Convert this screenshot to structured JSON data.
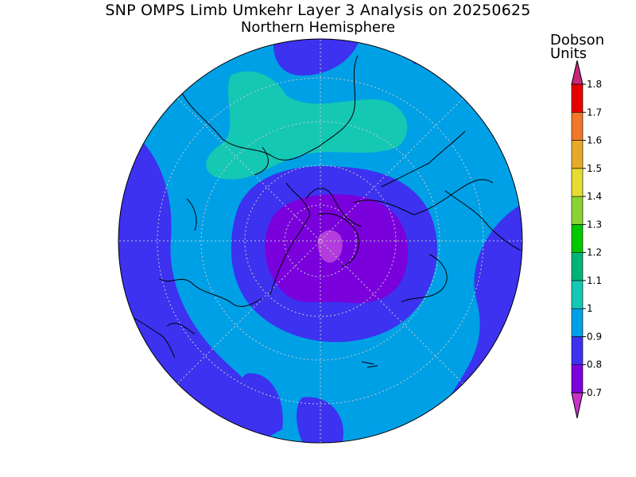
{
  "title": "SNP OMPS Limb Umkehr Layer 3 Analysis on 20250625",
  "subtitle": "Northern Hemisphere",
  "colorbar": {
    "units_line1": "Dobson",
    "units_line2": "Units",
    "ticks": [
      "0.7",
      "0.8",
      "0.9",
      "1",
      "1.1",
      "1.2",
      "1.3",
      "1.4",
      "1.5",
      "1.6",
      "1.7",
      "1.8"
    ],
    "bins": [
      {
        "color": "#7a00dc"
      },
      {
        "color": "#3c32f0"
      },
      {
        "color": "#00a0e6"
      },
      {
        "color": "#14c8b4"
      },
      {
        "color": "#00b478"
      },
      {
        "color": "#00c800"
      },
      {
        "color": "#8cd232"
      },
      {
        "color": "#e6dc32"
      },
      {
        "color": "#e6aa28"
      },
      {
        "color": "#f07828"
      },
      {
        "color": "#e60000"
      }
    ],
    "low_color": "#c832c8",
    "high_color": "#c8287a"
  },
  "legend_colors": {
    "background_field": "#00a0e6",
    "low_band": "#3c32f0",
    "min_core": "#7a00dc",
    "min_center": "#b43cdc",
    "high_band": "#14c8b4"
  }
}
